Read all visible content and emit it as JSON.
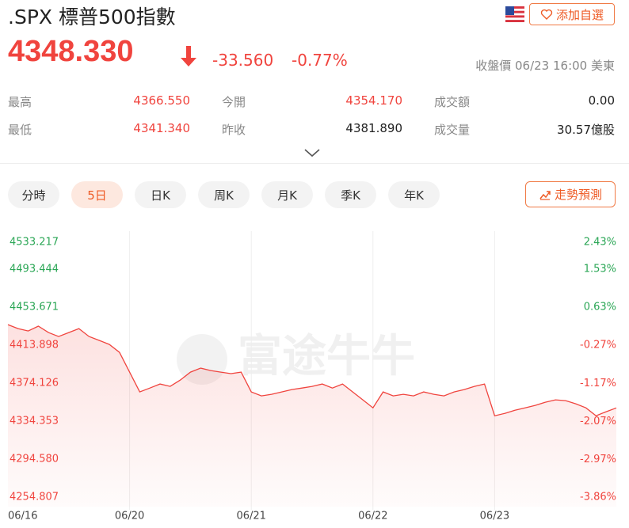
{
  "header": {
    "title": ".SPX 標普500指數",
    "watch_button": "添加自選"
  },
  "quote": {
    "price": "4348.330",
    "change": "-33.560",
    "change_pct": "-0.77%",
    "status": "收盤價 06/23 16:00 美東"
  },
  "stats": [
    [
      [
        "最高",
        "4366.550"
      ],
      [
        "今開",
        "4354.170"
      ],
      [
        "成交額",
        "0.00"
      ]
    ],
    [
      [
        "最低",
        "4341.340"
      ],
      [
        "昨收",
        "4381.890"
      ],
      [
        "成交量",
        "30.57億股"
      ]
    ]
  ],
  "tabs": [
    "分時",
    "5日",
    "日K",
    "周K",
    "月K",
    "季K",
    "年K"
  ],
  "active_tab": 1,
  "predict_button": "走勢預測",
  "chart_data": {
    "type": "line",
    "watermark": "富途牛牛",
    "color": "#f0443e",
    "categories": [
      "06/16",
      null,
      null,
      null,
      null,
      null,
      null,
      null,
      null,
      null,
      null,
      null,
      "06/20",
      null,
      null,
      null,
      null,
      null,
      null,
      null,
      null,
      null,
      null,
      null,
      "06/21",
      null,
      null,
      null,
      null,
      null,
      null,
      null,
      null,
      null,
      null,
      null,
      "06/22",
      null,
      null,
      null,
      null,
      null,
      null,
      null,
      null,
      null,
      null,
      null,
      "06/23",
      null,
      null,
      null,
      null,
      null,
      null,
      null,
      null,
      null,
      null,
      null,
      null
    ],
    "values": [
      4435.4,
      4431.3,
      4428.8,
      4433.8,
      4427.1,
      4423.0,
      4427.1,
      4431.3,
      4423.0,
      4418.9,
      4414.7,
      4406.4,
      4385.7,
      4365.0,
      4369.1,
      4373.3,
      4370.8,
      4377.4,
      4385.7,
      4389.9,
      4387.4,
      4385.7,
      4384.1,
      4385.7,
      4365.0,
      4360.9,
      4362.5,
      4365.0,
      4367.5,
      4369.1,
      4370.8,
      4373.3,
      4369.1,
      4373.3,
      4365.0,
      4356.7,
      4348.4,
      4365.0,
      4360.9,
      4362.5,
      4360.9,
      4365.0,
      4362.5,
      4360.9,
      4365.0,
      4367.5,
      4370.8,
      4373.3,
      4340.1,
      4342.6,
      4345.9,
      4348.4,
      4350.9,
      4354.2,
      4356.7,
      4355.9,
      4352.6,
      4348.4,
      4340.1,
      4344.3,
      4348.3
    ],
    "ylim": [
      4245,
      4533.217
    ],
    "yticks": [
      {
        "value": 4533.217,
        "label": "4533.217"
      },
      {
        "value": 4493.444,
        "label": "4493.444"
      },
      {
        "value": 4453.671,
        "label": "4453.671"
      },
      {
        "value": 4413.898,
        "label": "4413.898"
      },
      {
        "value": 4374.126,
        "label": "4374.126"
      },
      {
        "value": 4334.353,
        "label": "4334.353"
      },
      {
        "value": 4294.58,
        "label": "4294.580"
      },
      {
        "value": 4254.807,
        "label": "4254.807"
      }
    ],
    "y2lim": [
      -4.085,
      2.43
    ],
    "y2ticks": [
      {
        "value": 2.43,
        "label": "2.43%"
      },
      {
        "value": 1.53,
        "label": "1.53%"
      },
      {
        "value": 0.63,
        "label": "0.63%"
      },
      {
        "value": -0.27,
        "label": "-0.27%"
      },
      {
        "value": -1.17,
        "label": "-1.17%"
      },
      {
        "value": -2.07,
        "label": "-2.07%"
      },
      {
        "value": -2.97,
        "label": "-2.97%"
      },
      {
        "value": -3.86,
        "label": "-3.86%"
      }
    ]
  }
}
